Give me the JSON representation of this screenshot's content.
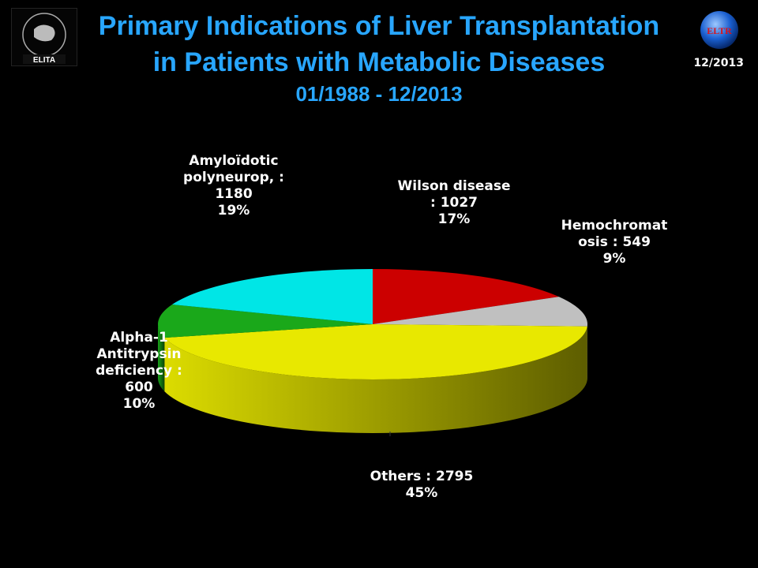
{
  "header": {
    "title_line1": "Primary Indications of Liver Transplantation",
    "title_line2": "in Patients with Metabolic Diseases",
    "period": "01/1988 - 12/2013",
    "date_badge": "12/2013",
    "logo_left_text": "ELITA",
    "logo_right_text": "ELTR"
  },
  "colors": {
    "title": "#28a6ff",
    "wilson": "#cc0000",
    "hemochromatosis": "#c0c0c0",
    "others": "#e8e800",
    "alpha1": "#1aa81a",
    "amyloidotic": "#00e6e6"
  },
  "chart_data": {
    "type": "pie",
    "three_d": true,
    "slices": [
      {
        "key": "wilson",
        "label_lines": [
          "Wilson disease",
          ": 1027",
          "17%"
        ],
        "value": 1027,
        "percent": 17
      },
      {
        "key": "hemochromatosis",
        "label_lines": [
          "Hemochromat",
          "osis : 549",
          "9%"
        ],
        "value": 549,
        "percent": 9
      },
      {
        "key": "others",
        "label_lines": [
          "Others : 2795",
          "45%"
        ],
        "value": 2795,
        "percent": 45
      },
      {
        "key": "alpha1",
        "label_lines": [
          "Alpha-1",
          "Antitrypsin",
          "deficiency :",
          "600",
          "10%"
        ],
        "value": 600,
        "percent": 10
      },
      {
        "key": "amyloidotic",
        "label_lines": [
          "Amyloïdotic",
          "polyneurop, :",
          "1180",
          "19%"
        ],
        "value": 1180,
        "percent": 19
      }
    ]
  }
}
